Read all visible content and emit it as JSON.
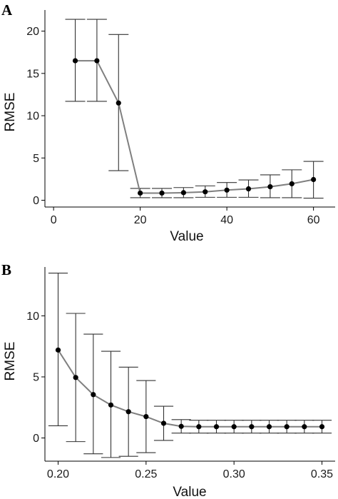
{
  "colors": {
    "line": "#7f7f7f",
    "point": "#000000",
    "errorbar": "#333333",
    "axis": "#000000"
  },
  "chart_data": [
    {
      "type": "line",
      "panel_label": "A",
      "xlabel": "Value",
      "ylabel": "RMSE",
      "xlim": [
        -2,
        65
      ],
      "ylim": [
        -0.8,
        22.5
      ],
      "xticks": [
        0,
        20,
        40,
        60
      ],
      "xtick_labels": [
        "0",
        "20",
        "40",
        "60"
      ],
      "yticks": [
        0,
        5,
        10,
        15,
        20
      ],
      "ytick_labels": [
        "0",
        "5",
        "10",
        "15",
        "20"
      ],
      "grid": false,
      "legend": "none",
      "error_bars": true,
      "series": [
        {
          "x": [
            5,
            10,
            15,
            20,
            25,
            30,
            35,
            40,
            45,
            50,
            55,
            60
          ],
          "y": [
            16.5,
            16.5,
            11.5,
            0.85,
            0.85,
            0.9,
            1.0,
            1.2,
            1.35,
            1.6,
            1.95,
            2.45
          ],
          "lower": [
            11.7,
            11.7,
            3.5,
            0.3,
            0.3,
            0.3,
            0.35,
            0.35,
            0.35,
            0.3,
            0.3,
            0.25
          ],
          "upper": [
            21.4,
            21.4,
            19.6,
            1.4,
            1.4,
            1.5,
            1.7,
            2.1,
            2.4,
            3.0,
            3.6,
            4.6
          ]
        }
      ]
    },
    {
      "type": "line",
      "panel_label": "B",
      "xlabel": "Value",
      "ylabel": "RMSE",
      "xlim": [
        0.1925,
        0.3575
      ],
      "ylim": [
        -1.9,
        14
      ],
      "xticks": [
        0.2,
        0.25,
        0.3,
        0.35
      ],
      "xtick_labels": [
        "0.20",
        "0.25",
        "0.30",
        "0.35"
      ],
      "yticks": [
        0,
        5,
        10
      ],
      "ytick_labels": [
        "0",
        "5",
        "10"
      ],
      "grid": false,
      "legend": "none",
      "error_bars": true,
      "series": [
        {
          "x": [
            0.2,
            0.21,
            0.22,
            0.23,
            0.24,
            0.25,
            0.26,
            0.27,
            0.28,
            0.29,
            0.3,
            0.31,
            0.32,
            0.33,
            0.34,
            0.35
          ],
          "y": [
            7.2,
            4.95,
            3.55,
            2.7,
            2.15,
            1.75,
            1.2,
            0.95,
            0.92,
            0.92,
            0.92,
            0.92,
            0.92,
            0.92,
            0.92,
            0.92
          ],
          "lower": [
            1.0,
            -0.3,
            -1.3,
            -1.6,
            -1.5,
            -1.2,
            -0.2,
            0.4,
            0.4,
            0.4,
            0.4,
            0.4,
            0.4,
            0.4,
            0.4,
            0.4
          ],
          "upper": [
            13.5,
            10.2,
            8.5,
            7.1,
            5.8,
            4.7,
            2.6,
            1.5,
            1.45,
            1.45,
            1.45,
            1.45,
            1.45,
            1.45,
            1.45,
            1.45
          ]
        }
      ]
    }
  ]
}
